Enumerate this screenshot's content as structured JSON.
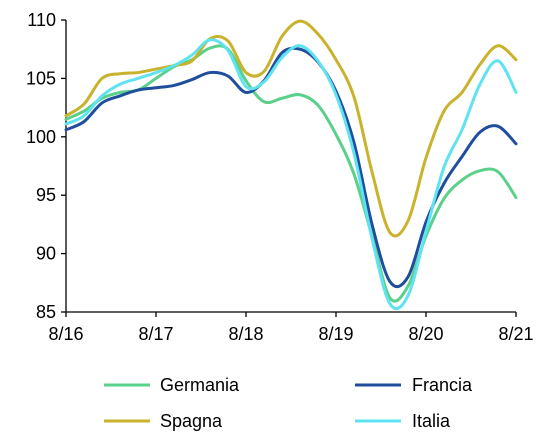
{
  "chart_data": {
    "type": "line",
    "title": "",
    "xlabel": "",
    "ylabel": "",
    "x_tick_labels": [
      "8/16",
      "8/17",
      "8/18",
      "8/19",
      "8/20",
      "8/21"
    ],
    "xlim": [
      0,
      5
    ],
    "ylim": [
      85,
      110
    ],
    "y_ticks": [
      85,
      90,
      95,
      100,
      105,
      110
    ],
    "grid": false,
    "legend_position": "bottom",
    "series": [
      {
        "name": "Germania",
        "color": "#5ad08a",
        "x": [
          0,
          0.2,
          0.4,
          0.6,
          0.8,
          1.0,
          1.2,
          1.4,
          1.6,
          1.8,
          2.0,
          2.2,
          2.4,
          2.6,
          2.8,
          3.0,
          3.2,
          3.4,
          3.6,
          3.8,
          4.0,
          4.2,
          4.4,
          4.6,
          4.8,
          5.0
        ],
        "values": [
          101.5,
          102.2,
          103.3,
          103.8,
          104.0,
          105.0,
          106.0,
          106.6,
          107.6,
          107.5,
          104.8,
          103.0,
          103.3,
          103.6,
          102.7,
          100.2,
          96.8,
          91.5,
          86.2,
          87.2,
          91.5,
          94.7,
          96.3,
          97.1,
          97.0,
          94.8
        ]
      },
      {
        "name": "Francia",
        "color": "#1f4e9c",
        "x": [
          0,
          0.2,
          0.4,
          0.6,
          0.8,
          1.0,
          1.2,
          1.4,
          1.6,
          1.8,
          2.0,
          2.2,
          2.4,
          2.6,
          2.8,
          3.0,
          3.2,
          3.4,
          3.6,
          3.8,
          4.0,
          4.2,
          4.4,
          4.6,
          4.8,
          5.0
        ],
        "values": [
          100.6,
          101.3,
          102.9,
          103.5,
          104.0,
          104.2,
          104.4,
          104.9,
          105.5,
          105.2,
          103.8,
          104.8,
          107.2,
          107.5,
          106.4,
          103.9,
          99.5,
          92.5,
          87.6,
          88.0,
          92.7,
          96.0,
          98.3,
          100.4,
          100.9,
          99.4
        ]
      },
      {
        "name": "Spagna",
        "color": "#c9b22c",
        "x": [
          0,
          0.2,
          0.4,
          0.6,
          0.8,
          1.0,
          1.2,
          1.4,
          1.6,
          1.8,
          2.0,
          2.2,
          2.4,
          2.6,
          2.8,
          3.0,
          3.2,
          3.4,
          3.6,
          3.8,
          4.0,
          4.2,
          4.4,
          4.6,
          4.8,
          5.0
        ],
        "values": [
          101.8,
          102.8,
          105.0,
          105.4,
          105.5,
          105.8,
          106.1,
          106.5,
          108.4,
          108.2,
          105.5,
          105.6,
          108.6,
          109.9,
          108.8,
          106.6,
          103.4,
          97.0,
          91.8,
          92.8,
          98.2,
          102.2,
          103.8,
          106.2,
          107.8,
          106.6
        ]
      },
      {
        "name": "Italia",
        "color": "#5fe3f0",
        "x": [
          0,
          0.2,
          0.4,
          0.6,
          0.8,
          1.0,
          1.2,
          1.4,
          1.6,
          1.8,
          2.0,
          2.2,
          2.4,
          2.6,
          2.8,
          3.0,
          3.2,
          3.4,
          3.6,
          3.8,
          4.0,
          4.2,
          4.4,
          4.6,
          4.8,
          5.0
        ],
        "values": [
          101.1,
          101.8,
          103.5,
          104.5,
          105.0,
          105.5,
          106.1,
          107.0,
          108.3,
          107.4,
          104.3,
          104.7,
          106.8,
          107.8,
          106.5,
          103.6,
          98.6,
          91.3,
          85.7,
          86.4,
          91.9,
          97.4,
          100.6,
          104.5,
          106.5,
          103.8
        ]
      }
    ]
  }
}
